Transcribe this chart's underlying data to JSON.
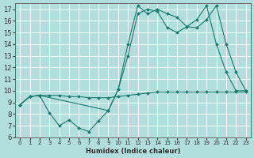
{
  "title": "",
  "xlabel": "Humidex (Indice chaleur)",
  "bg_color": "#b2dede",
  "grid_color": "#ffffff",
  "line_color": "#1a7a6e",
  "xlim": [
    -0.5,
    23.5
  ],
  "ylim": [
    6,
    17.5
  ],
  "yticks": [
    6,
    7,
    8,
    9,
    10,
    11,
    12,
    13,
    14,
    15,
    16,
    17
  ],
  "xticks": [
    0,
    1,
    2,
    3,
    4,
    5,
    6,
    7,
    8,
    9,
    10,
    11,
    12,
    13,
    14,
    15,
    16,
    17,
    18,
    19,
    20,
    21,
    22,
    23
  ],
  "line1_x": [
    0,
    1,
    2,
    3,
    4,
    5,
    6,
    7,
    8,
    9,
    10,
    11,
    12,
    13,
    14,
    15,
    16,
    17,
    18,
    19,
    20,
    21,
    22,
    23
  ],
  "line1_y": [
    8.8,
    9.5,
    9.6,
    8.1,
    7.0,
    7.5,
    6.8,
    6.5,
    7.4,
    8.3,
    10.1,
    14.0,
    17.3,
    16.6,
    17.0,
    16.6,
    16.3,
    15.5,
    15.4,
    16.1,
    17.3,
    14.0,
    11.6,
    10.0
  ],
  "line2_x": [
    0,
    1,
    2,
    9,
    10,
    11,
    12,
    13,
    14,
    15,
    16,
    17,
    18,
    19,
    20,
    21,
    22,
    23
  ],
  "line2_y": [
    8.8,
    9.5,
    9.6,
    8.3,
    10.1,
    13.0,
    16.6,
    17.0,
    16.8,
    15.4,
    15.0,
    15.5,
    16.1,
    17.3,
    14.0,
    11.6,
    10.0,
    10.0
  ],
  "line3_x": [
    0,
    1,
    2,
    3,
    4,
    5,
    6,
    7,
    8,
    9,
    10,
    11,
    12,
    13,
    14,
    15,
    16,
    17,
    18,
    19,
    20,
    21,
    22,
    23
  ],
  "line3_y": [
    8.8,
    9.5,
    9.6,
    9.6,
    9.6,
    9.5,
    9.5,
    9.4,
    9.4,
    9.4,
    9.5,
    9.6,
    9.7,
    9.8,
    9.9,
    9.9,
    9.9,
    9.9,
    9.9,
    9.9,
    9.9,
    9.9,
    9.9,
    9.9
  ]
}
